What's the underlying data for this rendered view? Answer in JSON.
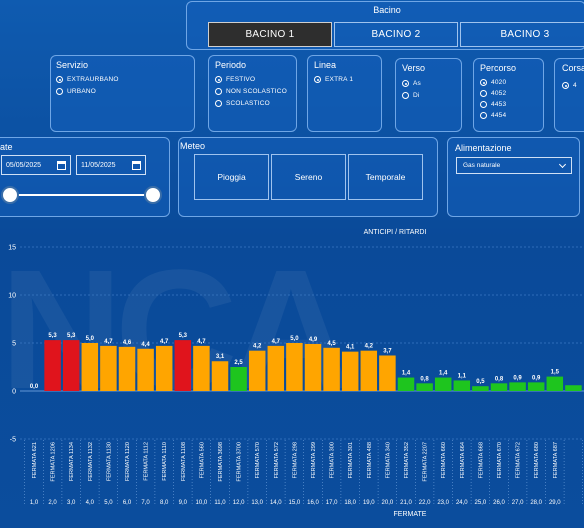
{
  "bacino": {
    "title": "Bacino",
    "buttons": [
      "BACINO 1",
      "BACINO 2",
      "BACINO 3"
    ],
    "active": 0
  },
  "servizio": {
    "title": "Servizio",
    "options": [
      {
        "label": "EXTRAURBANO",
        "selected": true
      },
      {
        "label": "URBANO",
        "selected": false
      }
    ]
  },
  "periodo": {
    "title": "Periodo",
    "options": [
      {
        "label": "FESTIVO",
        "selected": true
      },
      {
        "label": "NON SCOLASTICO",
        "selected": false
      },
      {
        "label": "SCOLASTICO",
        "selected": false
      }
    ]
  },
  "linea": {
    "title": "Linea",
    "options": [
      {
        "label": "EXTRA 1",
        "selected": true
      }
    ]
  },
  "verso": {
    "title": "Verso",
    "options": [
      {
        "label": "As",
        "selected": true
      },
      {
        "label": "Di",
        "selected": false
      }
    ]
  },
  "percorso": {
    "title": "Percorso",
    "options": [
      {
        "label": "4020",
        "selected": true
      },
      {
        "label": "4052",
        "selected": false
      },
      {
        "label": "4453",
        "selected": false
      },
      {
        "label": "4454",
        "selected": false
      }
    ]
  },
  "corsa": {
    "title": "Corsa",
    "options": [
      {
        "label": "4",
        "selected": true
      }
    ]
  },
  "date": {
    "title": "ate",
    "from": "05/05/2025",
    "to": "11/05/2025"
  },
  "meteo": {
    "title": "Meteo",
    "buttons": [
      "Pioggia",
      "Sereno",
      "Temporale"
    ]
  },
  "alimentazione": {
    "title": "Alimentazione",
    "selected": "Gas naturale"
  },
  "watermark": "NCA",
  "colors": {
    "red": "#e0141c",
    "orange": "#ffa500",
    "green": "#1ec51e"
  },
  "chart_data": {
    "type": "bar",
    "title": "ANTICIPI / RITARDI",
    "xlabel": "FERMATE",
    "ylim": [
      -5,
      15
    ],
    "yticks": [
      -5,
      0,
      5,
      10,
      15
    ],
    "bars": [
      {
        "label": "FERMATA 621",
        "idx": "1,0",
        "value": 0.0,
        "value_label": "0,0",
        "color": "none"
      },
      {
        "label": "FERMATA 1206",
        "idx": "2,0",
        "value": 5.3,
        "value_label": "5,3",
        "color": "red"
      },
      {
        "label": "FERMATA 1134",
        "idx": "3,0",
        "value": 5.3,
        "value_label": "5,3",
        "color": "red"
      },
      {
        "label": "FERMATA 1132",
        "idx": "4,0",
        "value": 5.0,
        "value_label": "5,0",
        "color": "orange"
      },
      {
        "label": "FERMATA 1130",
        "idx": "5,0",
        "value": 4.7,
        "value_label": "4,7",
        "color": "orange"
      },
      {
        "label": "FERMATA 1120",
        "idx": "6,0",
        "value": 4.6,
        "value_label": "4,6",
        "color": "orange"
      },
      {
        "label": "FERMATA 1112",
        "idx": "7,0",
        "value": 4.4,
        "value_label": "4,4",
        "color": "orange"
      },
      {
        "label": "FERMATA 1110",
        "idx": "8,0",
        "value": 4.7,
        "value_label": "4,7",
        "color": "orange"
      },
      {
        "label": "FERMATA 1108",
        "idx": "9,0",
        "value": 5.3,
        "value_label": "5,3",
        "color": "red"
      },
      {
        "label": "FERMATA 560",
        "idx": "10,0",
        "value": 4.7,
        "value_label": "4,7",
        "color": "orange"
      },
      {
        "label": "FERMATA 3698",
        "idx": "11,0",
        "value": 3.1,
        "value_label": "3,1",
        "color": "orange"
      },
      {
        "label": "FERMATA 3700",
        "idx": "12,0",
        "value": 2.5,
        "value_label": "2,5",
        "color": "green"
      },
      {
        "label": "FERMATA 570",
        "idx": "13,0",
        "value": 4.2,
        "value_label": "4,2",
        "color": "orange"
      },
      {
        "label": "FERMATA 572",
        "idx": "14,0",
        "value": 4.7,
        "value_label": "4,7",
        "color": "orange"
      },
      {
        "label": "FERMATA 298",
        "idx": "15,0",
        "value": 5.0,
        "value_label": "5,0",
        "color": "orange"
      },
      {
        "label": "FERMATA 299",
        "idx": "16,0",
        "value": 4.9,
        "value_label": "4,9",
        "color": "orange"
      },
      {
        "label": "FERMATA 300",
        "idx": "17,0",
        "value": 4.5,
        "value_label": "4,5",
        "color": "orange"
      },
      {
        "label": "FERMATA 301",
        "idx": "18,0",
        "value": 4.1,
        "value_label": "4,1",
        "color": "orange"
      },
      {
        "label": "FERMATA 488",
        "idx": "19,0",
        "value": 4.2,
        "value_label": "4,2",
        "color": "orange"
      },
      {
        "label": "FERMATA 340",
        "idx": "20,0",
        "value": 3.7,
        "value_label": "3,7",
        "color": "orange"
      },
      {
        "label": "FERMATA 352",
        "idx": "21,0",
        "value": 1.4,
        "value_label": "1,4",
        "color": "green"
      },
      {
        "label": "FERMATA 2207",
        "idx": "22,0",
        "value": 0.8,
        "value_label": "0,8",
        "color": "green"
      },
      {
        "label": "FERMATA 660",
        "idx": "23,0",
        "value": 1.4,
        "value_label": "1,4",
        "color": "green"
      },
      {
        "label": "FERMATA 664",
        "idx": "24,0",
        "value": 1.1,
        "value_label": "1,1",
        "color": "green"
      },
      {
        "label": "FERMATA 668",
        "idx": "25,0",
        "value": 0.5,
        "value_label": "0,5",
        "color": "green"
      },
      {
        "label": "FERMATA 670",
        "idx": "26,0",
        "value": 0.8,
        "value_label": "0,8",
        "color": "green"
      },
      {
        "label": "FERMATA 672",
        "idx": "27,0",
        "value": 0.9,
        "value_label": "0,9",
        "color": "green"
      },
      {
        "label": "FERMATA 680",
        "idx": "28,0",
        "value": 0.9,
        "value_label": "0,9",
        "color": "green"
      },
      {
        "label": "FERMATA 687",
        "idx": "29,0",
        "value": 1.5,
        "value_label": "1,5",
        "color": "green"
      },
      {
        "label": "",
        "idx": "",
        "value": 0.6,
        "value_label": "",
        "color": "green"
      }
    ]
  }
}
